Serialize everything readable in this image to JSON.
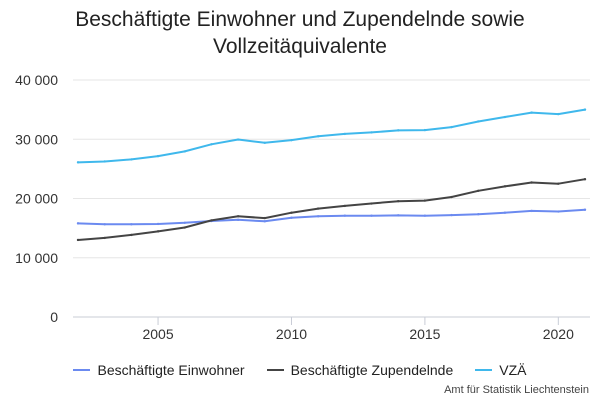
{
  "chart_data": {
    "type": "line",
    "title_lines": [
      "Beschäftigte Einwohner und Zupendelnde sowie",
      "Vollzeitäquivalente"
    ],
    "xlabel": "",
    "ylabel": "",
    "x": [
      2002,
      2003,
      2004,
      2005,
      2006,
      2007,
      2008,
      2009,
      2010,
      2011,
      2012,
      2013,
      2014,
      2015,
      2016,
      2017,
      2018,
      2019,
      2020,
      2021
    ],
    "xlim": [
      2002,
      2021
    ],
    "ylim": [
      0,
      40000
    ],
    "x_ticks": [
      2005,
      2010,
      2015,
      2020
    ],
    "y_ticks": [
      0,
      10000,
      20000,
      30000,
      40000
    ],
    "y_tick_labels": [
      "0",
      "10 000",
      "20 000",
      "30 000",
      "40 000"
    ],
    "grid": "horizontal",
    "legend_position": "bottom",
    "series": [
      {
        "name": "Beschäftigte Einwohner",
        "color": "#6b8af0",
        "values": [
          15800,
          15650,
          15650,
          15700,
          15900,
          16200,
          16400,
          16150,
          16750,
          17000,
          17100,
          17100,
          17150,
          17100,
          17200,
          17350,
          17600,
          17900,
          17800,
          18100
        ]
      },
      {
        "name": "Beschäftigte Zupendelnde",
        "color": "#444444",
        "values": [
          13000,
          13350,
          13850,
          14450,
          15100,
          16300,
          17000,
          16700,
          17600,
          18300,
          18750,
          19150,
          19550,
          19650,
          20250,
          21300,
          22050,
          22700,
          22500,
          23250
        ]
      },
      {
        "name": "VZÄ",
        "color": "#3fb8ec",
        "values": [
          26100,
          26250,
          26600,
          27150,
          27950,
          29150,
          29950,
          29400,
          29850,
          30500,
          30900,
          31150,
          31500,
          31550,
          32050,
          33000,
          33750,
          34500,
          34250,
          35000
        ]
      }
    ]
  },
  "credits": "Amt für Statistik Liechtenstein"
}
